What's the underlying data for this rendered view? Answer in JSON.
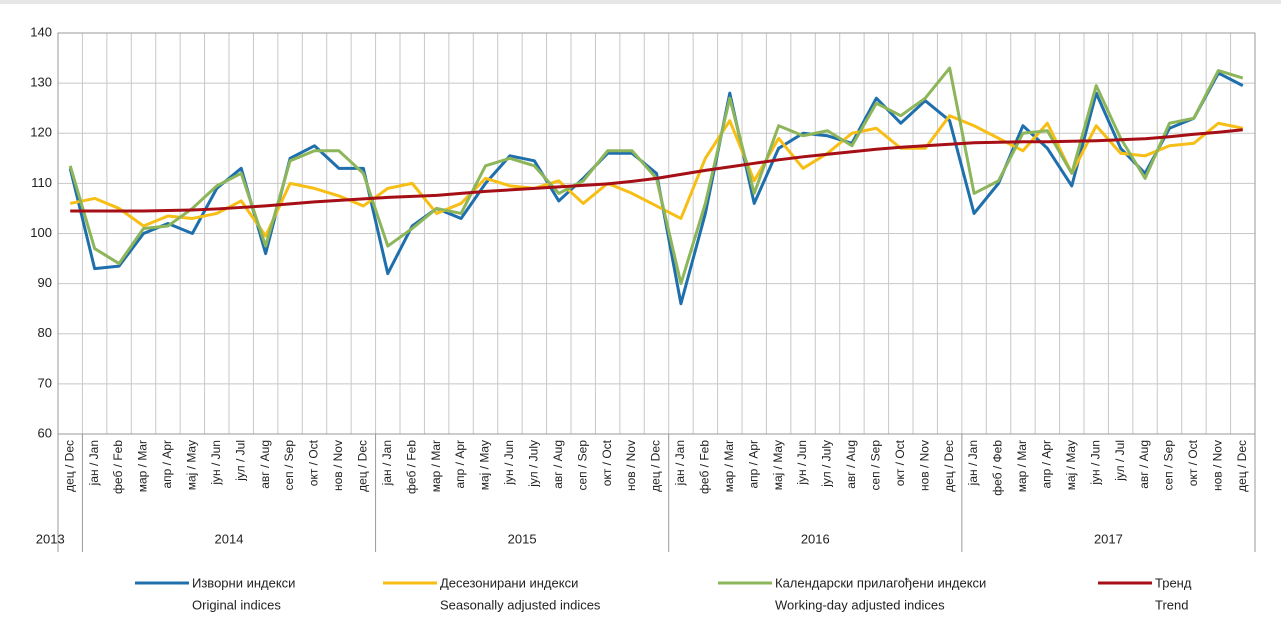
{
  "chart_data": {
    "type": "line",
    "categories": [
      "дец / Dec",
      "јан / Jan",
      "феб / Feb",
      "мар / Mar",
      "апр / Apr",
      "мај / May",
      "јун / Jun",
      "јул / Jul",
      "авг / Aug",
      "сеп / Sep",
      "окт / Oct",
      "нов / Nov",
      "дец / Dec",
      "јан / Jan",
      "феб / Feb",
      "мар / Mar",
      "апр / Apr",
      "мај / May",
      "јун / Jun",
      "јул / July",
      "авг / Aug",
      "сеп / Sep",
      "окт / Oct",
      "нов / Nov",
      "дец / Dec",
      "јан / Jan",
      "феб / Feb",
      "мар / Mar",
      "апр / Apr",
      "мај / May",
      "јун / Jun",
      "јул / July",
      "авг / Aug",
      "сеп / Sep",
      "окт / Oct",
      "нов / Nov",
      "дец / Dec",
      "јан / Jan",
      "феб / Феb",
      "мар / Mar",
      "апр / Apr",
      "мај / May",
      "јун / Jun",
      "јул / Jul",
      "авг / Aug",
      "сеп / Sep",
      "окт / Oct",
      "нов / Nov",
      "дец / Dec"
    ],
    "groups": [
      {
        "label": "2013",
        "count": 1
      },
      {
        "label": "2014",
        "count": 12
      },
      {
        "label": "2015",
        "count": 12
      },
      {
        "label": "2016",
        "count": 12
      },
      {
        "label": "2017",
        "count": 12
      }
    ],
    "ylim": [
      60,
      140
    ],
    "yticks": [
      60,
      70,
      80,
      90,
      100,
      110,
      120,
      130,
      140
    ],
    "grid": true,
    "series": [
      {
        "name": "Изворни индекси",
        "name_en": "Original indices",
        "color": "#1f6fad",
        "values": [
          113,
          93,
          93.5,
          100,
          102,
          100,
          109,
          113,
          96,
          115,
          117.5,
          113,
          113,
          92,
          101.5,
          105,
          103,
          110,
          115.5,
          114.5,
          106.5,
          111,
          116,
          116,
          112,
          86,
          104,
          128,
          106,
          117,
          120,
          119.5,
          118,
          127,
          122,
          126.5,
          122.5,
          104,
          110,
          121.5,
          117,
          109.5,
          128,
          117,
          112,
          121,
          123,
          132,
          129.5
        ]
      },
      {
        "name": "Десезонирани индекси",
        "name_en": "Seasonally adjusted indices",
        "color": "#f7be16",
        "values": [
          106,
          107,
          105,
          101.5,
          103.5,
          103,
          104,
          106.5,
          99.5,
          110,
          109,
          107.5,
          105.5,
          109,
          110,
          104,
          106,
          111,
          109.5,
          109,
          110.5,
          106,
          110,
          108,
          105.5,
          103,
          115,
          122.5,
          110.5,
          119,
          113,
          116,
          120,
          121,
          117,
          117,
          123.5,
          121.5,
          119,
          116.5,
          122,
          112,
          121.5,
          116,
          115.5,
          117.5,
          118,
          122,
          121
        ]
      },
      {
        "name": "Календарски прилагођени индекси",
        "name_en": "Working-day adjusted indices",
        "color": "#8db55a",
        "values": [
          113.5,
          97,
          94,
          101,
          101.5,
          105,
          109.5,
          112,
          97.5,
          114.5,
          116.5,
          116.5,
          112,
          97.5,
          101,
          105,
          104,
          113.5,
          115,
          113.5,
          108,
          110.5,
          116.5,
          116.5,
          111,
          90,
          106,
          127,
          108,
          121.5,
          119.5,
          120.5,
          117.5,
          126,
          123.5,
          127,
          133,
          108,
          110.5,
          120,
          120.5,
          112,
          129.5,
          119,
          111,
          122,
          123,
          132.5,
          131
        ]
      },
      {
        "name": "Тренд",
        "name_en": "Trend",
        "color": "#a50f15",
        "values": [
          104.5,
          104.5,
          104.5,
          104.5,
          104.6,
          104.7,
          104.9,
          105.2,
          105.5,
          105.9,
          106.3,
          106.6,
          106.9,
          107.2,
          107.4,
          107.6,
          108,
          108.4,
          108.7,
          109,
          109.3,
          109.6,
          109.9,
          110.4,
          111,
          111.8,
          112.6,
          113.3,
          114,
          114.7,
          115.3,
          115.8,
          116.3,
          116.8,
          117.2,
          117.5,
          117.8,
          118.1,
          118.2,
          118.3,
          118.3,
          118.4,
          118.5,
          118.7,
          118.9,
          119.3,
          119.8,
          120.2,
          120.7
        ]
      }
    ]
  }
}
